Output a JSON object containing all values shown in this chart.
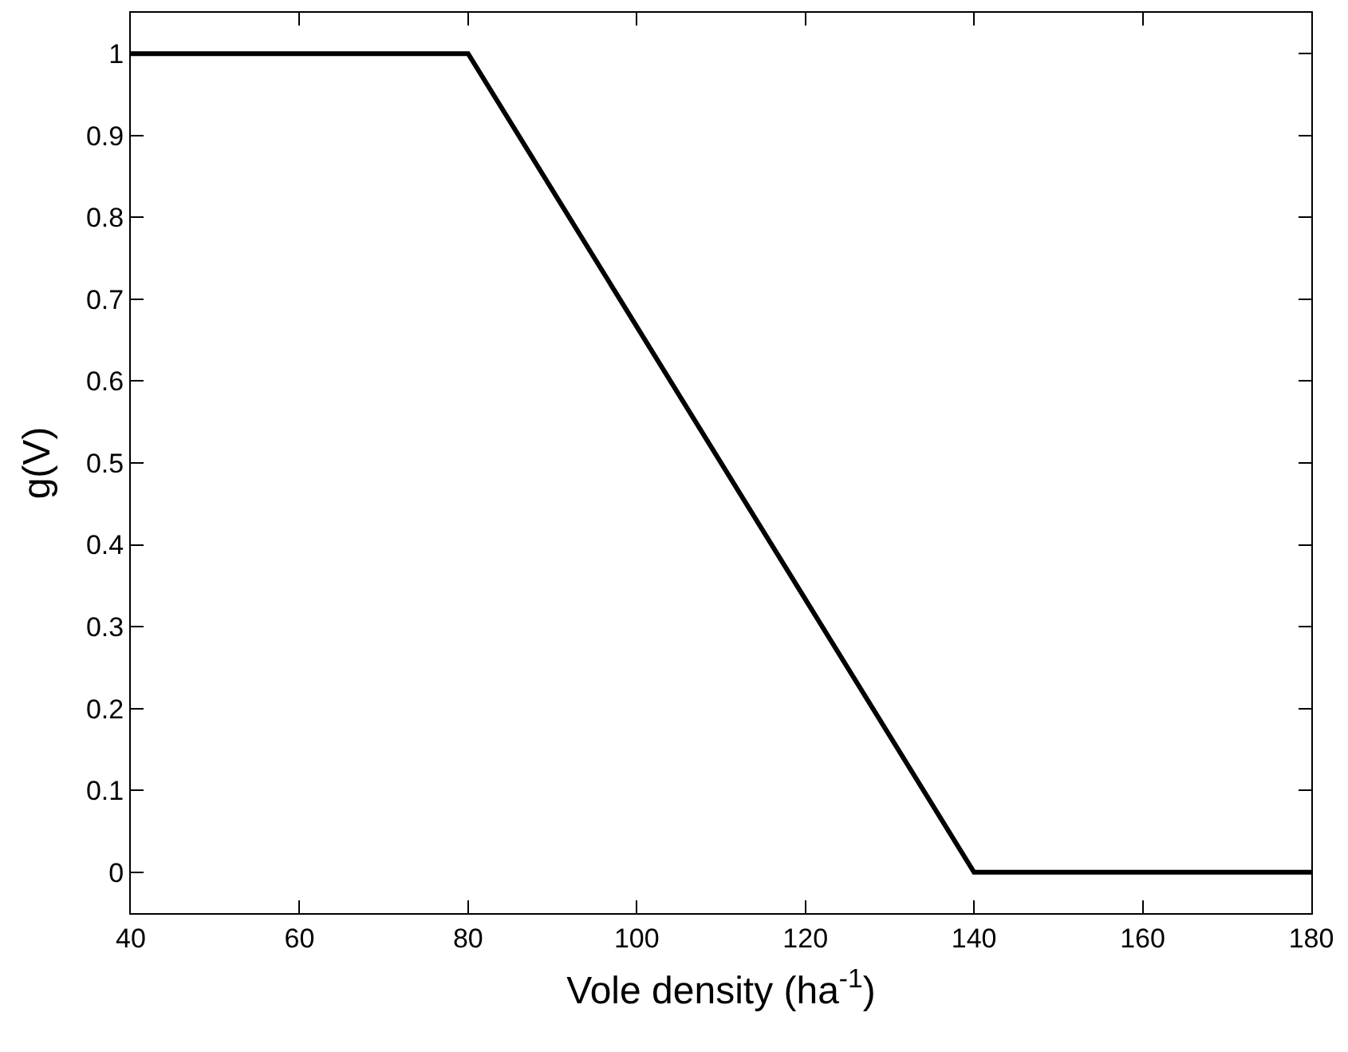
{
  "chart_data": {
    "type": "line",
    "xlabel": "Vole density (ha$^{-1}$)",
    "ylabel": "g(V)",
    "x": [
      40,
      80,
      140,
      180
    ],
    "series": [
      {
        "color": "#000000",
        "values": [
          1,
          1,
          0,
          0
        ]
      }
    ],
    "xlim": [
      40,
      180
    ],
    "xticks": [
      40,
      60,
      80,
      100,
      120,
      140,
      160,
      180
    ],
    "ylim": [
      -0.05,
      1.05
    ],
    "yticks": [
      0,
      0.1,
      0.2,
      0.3,
      0.4,
      0.5,
      0.6,
      0.7,
      0.8,
      0.9,
      1
    ],
    "marker": "none",
    "line_style": "solid"
  }
}
